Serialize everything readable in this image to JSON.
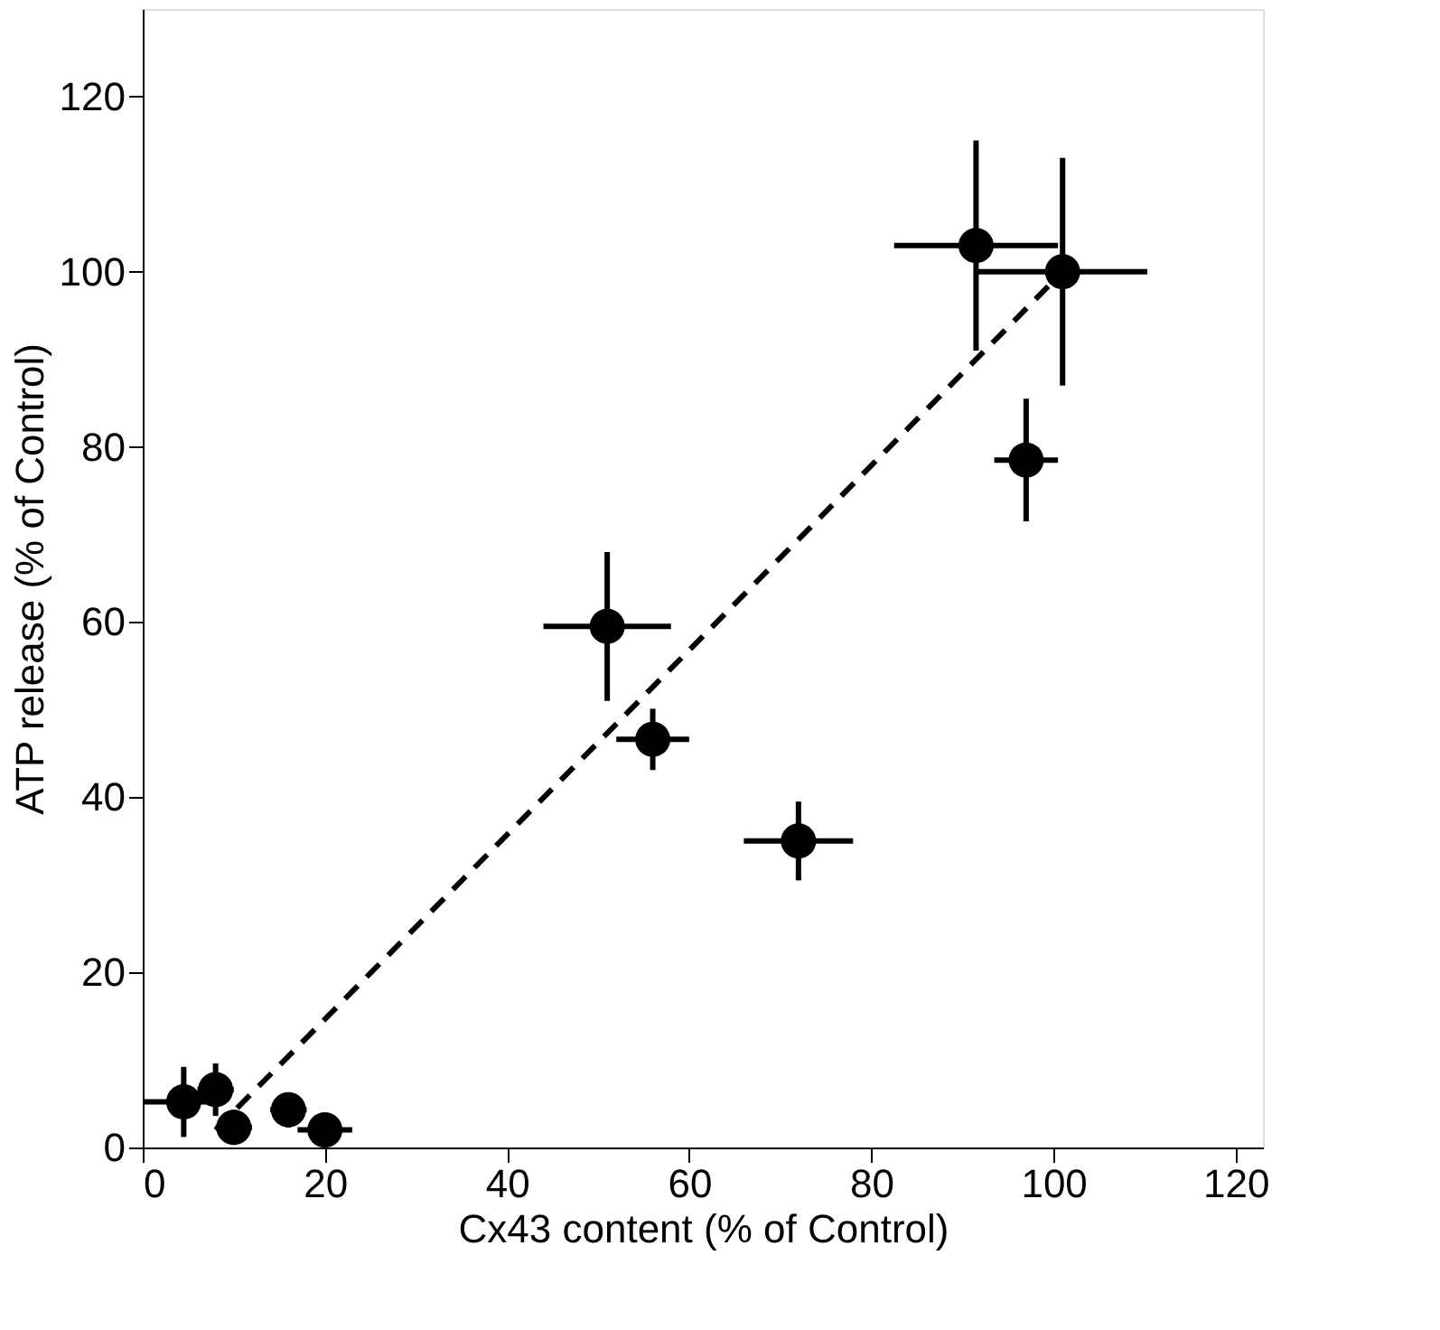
{
  "chart_data": {
    "type": "scatter",
    "xlabel": "Cx43 content (% of Control)",
    "ylabel": "ATP release (% of Control)",
    "xlim": [
      0,
      123
    ],
    "ylim": [
      0,
      130
    ],
    "xticks": [
      0,
      20,
      40,
      60,
      80,
      100,
      120
    ],
    "yticks": [
      0,
      20,
      40,
      60,
      80,
      100,
      120
    ],
    "grid": false,
    "series": [
      {
        "type": "scatter",
        "color": "#000000",
        "marker": "circle",
        "x": [
          4.5,
          8,
          10,
          16,
          20,
          51,
          56,
          72,
          91.5,
          101,
          97
        ],
        "values": [
          5.2,
          6.6,
          2.3,
          4.3,
          2,
          59.5,
          46.6,
          35,
          103,
          100,
          78.5
        ],
        "errors": [
          4,
          3,
          2,
          2,
          1.5,
          8.5,
          3.5,
          4.5,
          12,
          13,
          7
        ],
        "xerrors": [
          4.5,
          2,
          2,
          2,
          3,
          7,
          4,
          6,
          9,
          9.3,
          3.5
        ]
      },
      {
        "type": "line",
        "color": "#000000",
        "line_style": "dashed",
        "x": [
          8,
          101
        ],
        "values": [
          2,
          100
        ]
      }
    ]
  }
}
